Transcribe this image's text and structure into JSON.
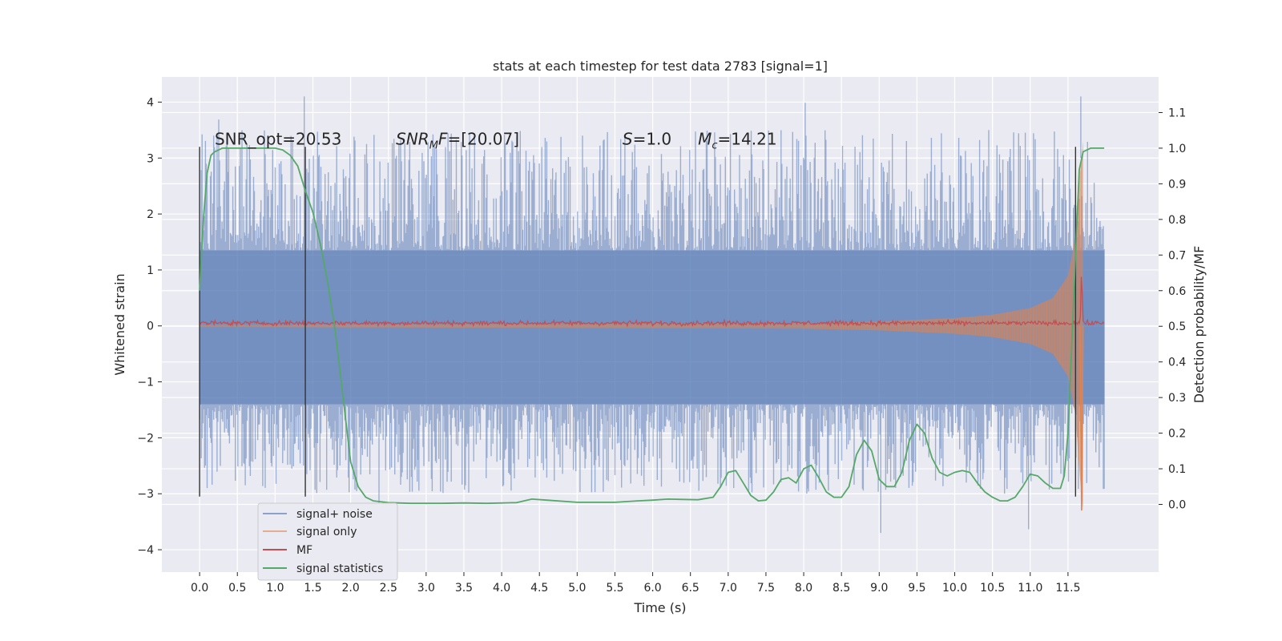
{
  "chart_data": {
    "type": "line",
    "title": "stats at each timestep for test data 2783 [signal=1]",
    "xlabel": "Time (s)",
    "ylabel": "Whitened strain",
    "y2label": "Detection probability/MF",
    "xlim": [
      -0.5,
      12.7
    ],
    "ylim": [
      -4.4,
      4.45
    ],
    "y2lim": [
      -0.19,
      1.2
    ],
    "x_ticks": [
      0.0,
      0.5,
      1.0,
      1.5,
      2.0,
      2.5,
      3.0,
      3.5,
      4.0,
      4.5,
      5.0,
      5.5,
      6.0,
      6.5,
      7.0,
      7.5,
      8.0,
      8.5,
      9.0,
      9.5,
      10.0,
      10.5,
      11.0,
      11.5
    ],
    "x_tick_labels": [
      "0.0",
      "0.5",
      "1.0",
      "1.5",
      "2.0",
      "2.5",
      "3.0",
      "3.5",
      "4.0",
      "4.5",
      "5.0",
      "5.5",
      "6.0",
      "6.5",
      "7.0",
      "7.5",
      "8.0",
      "8.5",
      "9.0",
      "9.5",
      "10.0",
      "10.5",
      "11.0",
      "11.5"
    ],
    "y_ticks": [
      -4,
      -3,
      -2,
      -1,
      0,
      1,
      2,
      3,
      4
    ],
    "y_tick_labels": [
      "−4",
      "−3",
      "−2",
      "−1",
      "0",
      "1",
      "2",
      "3",
      "4"
    ],
    "y2_ticks": [
      0.0,
      0.1,
      0.2,
      0.3,
      0.4,
      0.5,
      0.6,
      0.7,
      0.8,
      0.9,
      1.0,
      1.1
    ],
    "y2_tick_labels": [
      "0.0",
      "0.1",
      "0.2",
      "0.3",
      "0.4",
      "0.5",
      "0.6",
      "0.7",
      "0.8",
      "0.9",
      "1.0",
      "1.1"
    ],
    "grid": true,
    "legend_position": "lower-left",
    "series": [
      {
        "name": "signal+ noise",
        "color": "#4c72b0",
        "axis": "left",
        "style": "noise-band",
        "x_range": [
          0.0,
          11.98
        ],
        "typical_extent": [
          -1.4,
          1.35
        ],
        "peak_extent": [
          -3.7,
          4.1
        ]
      },
      {
        "name": "signal only",
        "color": "#dd8452",
        "axis": "left",
        "style": "chirp",
        "x_range": [
          0.0,
          11.7
        ],
        "envelope": {
          "x": [
            0.0,
            8.0,
            9.0,
            10.0,
            10.5,
            11.0,
            11.3,
            11.5,
            11.6,
            11.65,
            11.7
          ],
          "amp": [
            0.02,
            0.05,
            0.08,
            0.14,
            0.2,
            0.32,
            0.5,
            0.9,
            1.6,
            2.6,
            3.3
          ]
        }
      },
      {
        "name": "MF",
        "color": "#c44e52",
        "axis": "left",
        "style": "noisy-line",
        "x_range": [
          0.0,
          11.98
        ],
        "baseline": 0.05,
        "peak": {
          "x": 11.68,
          "y": 1.0
        }
      },
      {
        "name": "signal statistics",
        "color": "#55a868",
        "axis": "right",
        "style": "line",
        "x": [
          0.0,
          0.05,
          0.1,
          0.15,
          0.2,
          0.3,
          0.45,
          0.6,
          0.8,
          1.0,
          1.1,
          1.2,
          1.3,
          1.4,
          1.5,
          1.6,
          1.7,
          1.8,
          1.9,
          2.0,
          2.1,
          2.2,
          2.3,
          2.5,
          2.8,
          3.2,
          3.5,
          3.8,
          4.2,
          4.4,
          4.6,
          5.0,
          5.5,
          5.8,
          6.0,
          6.2,
          6.4,
          6.6,
          6.8,
          6.9,
          7.0,
          7.1,
          7.2,
          7.3,
          7.4,
          7.5,
          7.6,
          7.7,
          7.8,
          7.9,
          8.0,
          8.1,
          8.2,
          8.3,
          8.4,
          8.5,
          8.6,
          8.7,
          8.8,
          8.9,
          9.0,
          9.1,
          9.2,
          9.3,
          9.4,
          9.5,
          9.6,
          9.7,
          9.8,
          9.9,
          10.0,
          10.1,
          10.2,
          10.3,
          10.4,
          10.5,
          10.6,
          10.7,
          10.8,
          10.9,
          11.0,
          11.1,
          11.2,
          11.3,
          11.4,
          11.45,
          11.5,
          11.55,
          11.6,
          11.65,
          11.7,
          11.8,
          11.9,
          11.98
        ],
        "y": [
          0.6,
          0.8,
          0.93,
          0.98,
          0.99,
          1.0,
          1.0,
          1.0,
          1.0,
          1.0,
          0.995,
          0.98,
          0.95,
          0.88,
          0.82,
          0.73,
          0.62,
          0.48,
          0.3,
          0.12,
          0.05,
          0.02,
          0.01,
          0.005,
          0.003,
          0.003,
          0.004,
          0.003,
          0.005,
          0.015,
          0.012,
          0.006,
          0.006,
          0.01,
          0.012,
          0.015,
          0.014,
          0.013,
          0.02,
          0.05,
          0.09,
          0.095,
          0.06,
          0.025,
          0.01,
          0.012,
          0.035,
          0.07,
          0.075,
          0.06,
          0.1,
          0.11,
          0.075,
          0.035,
          0.02,
          0.02,
          0.05,
          0.14,
          0.18,
          0.15,
          0.07,
          0.05,
          0.05,
          0.09,
          0.18,
          0.225,
          0.2,
          0.13,
          0.09,
          0.08,
          0.09,
          0.095,
          0.09,
          0.06,
          0.035,
          0.02,
          0.01,
          0.01,
          0.02,
          0.05,
          0.085,
          0.08,
          0.06,
          0.045,
          0.045,
          0.08,
          0.2,
          0.45,
          0.7,
          0.94,
          0.99,
          1.0,
          1.0,
          1.0
        ]
      }
    ],
    "vertical_markers": [
      0.0,
      1.4,
      11.6
    ],
    "annotations": [
      {
        "parts": [
          {
            "text": "SNR_opt=20.53",
            "italic": false
          }
        ],
        "x": 0.2,
        "y": 3.2
      },
      {
        "parts": [
          {
            "text": "SNR",
            "italic": true
          },
          {
            "text": "M",
            "italic": true,
            "sub": true
          },
          {
            "text": "F",
            "italic": true
          },
          {
            "text": "=[20.07]",
            "italic": false
          }
        ],
        "x": 2.6,
        "y": 3.2
      },
      {
        "parts": [
          {
            "text": "S",
            "italic": true
          },
          {
            "text": "=1.0",
            "italic": false
          }
        ],
        "x": 5.6,
        "y": 3.2
      },
      {
        "parts": [
          {
            "text": "M",
            "italic": true
          },
          {
            "text": "c",
            "italic": true,
            "sub": true
          },
          {
            "text": "=14.21",
            "italic": false
          }
        ],
        "x": 6.6,
        "y": 3.2
      }
    ],
    "colors": {
      "background": "#eaeaf2",
      "grid": "#ffffff",
      "marker": "#333333"
    }
  }
}
